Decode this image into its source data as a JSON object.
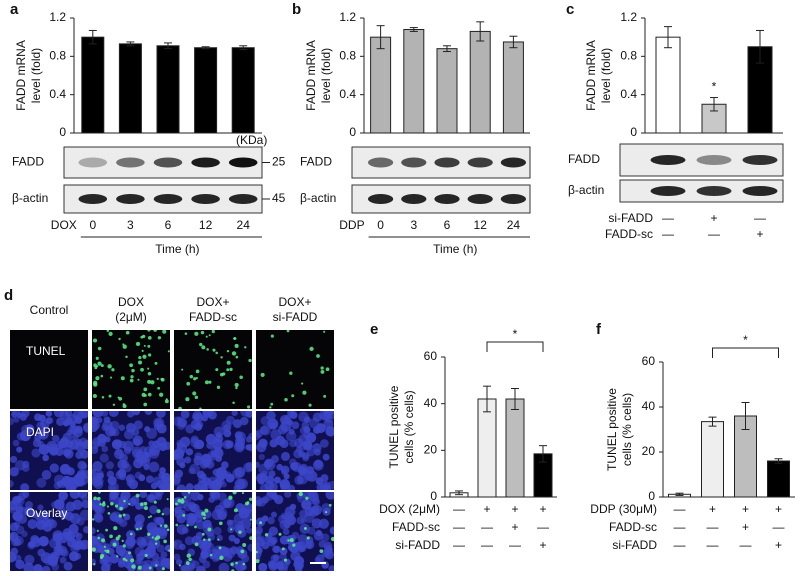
{
  "chart_data": [
    {
      "type": "bar",
      "panel": "a",
      "y_label": [
        "FADD mRNA",
        "level (fold)"
      ],
      "categories": [
        "0",
        "3",
        "6",
        "12",
        "24"
      ],
      "treatment": "DOX",
      "x_label": "Time (h)",
      "values": [
        1.0,
        0.93,
        0.91,
        0.89,
        0.89
      ],
      "errors": [
        0.07,
        0.02,
        0.03,
        0.01,
        0.02
      ],
      "color": "#000000",
      "ylim": [
        0,
        1.2
      ],
      "yticks": [
        0,
        0.4,
        0.8,
        1.2
      ],
      "blot_rows": [
        "FADD",
        "β-actin"
      ],
      "size_unit": "(KDa)",
      "size_markers": [
        25,
        45
      ]
    },
    {
      "type": "bar",
      "panel": "b",
      "y_label": [
        "FADD mRNA",
        "level (fold)"
      ],
      "categories": [
        "0",
        "3",
        "6",
        "12",
        "24"
      ],
      "treatment": "DDP",
      "x_label": "Time (h)",
      "values": [
        1.0,
        1.08,
        0.88,
        1.06,
        0.95
      ],
      "errors": [
        0.12,
        0.02,
        0.03,
        0.1,
        0.06
      ],
      "color": "#b3b3b3",
      "ylim": [
        0,
        1.2
      ],
      "yticks": [
        0,
        0.4,
        0.8,
        1.2
      ],
      "blot_rows": [
        "FADD",
        "β-actin"
      ]
    },
    {
      "type": "bar",
      "panel": "c",
      "y_label": [
        "FADD mRNA",
        "level (fold)"
      ],
      "values": [
        1.0,
        0.3,
        0.9
      ],
      "errors": [
        0.11,
        0.07,
        0.17
      ],
      "colors": [
        "#ffffff",
        "#c8c8c8",
        "#000000"
      ],
      "ylim": [
        0,
        1.2
      ],
      "yticks": [
        0,
        0.4,
        0.8,
        1.2
      ],
      "significance": "*",
      "blot_rows": [
        "FADD",
        "β-actin"
      ],
      "conditions": [
        {
          "name": "si-FADD",
          "marks": [
            "—",
            "+",
            "—"
          ]
        },
        {
          "name": "FADD-sc",
          "marks": [
            "—",
            "—",
            "+"
          ]
        }
      ]
    },
    {
      "type": "bar",
      "panel": "e",
      "y_label": [
        "TUNEL positive",
        "cells (% cells)"
      ],
      "values": [
        1.8,
        42,
        42,
        18.5
      ],
      "errors": [
        0.8,
        5.5,
        4.5,
        3.5
      ],
      "colors": [
        "#ffffff",
        "#eeeeee",
        "#bdbdbd",
        "#000000"
      ],
      "ylim": [
        0,
        60
      ],
      "yticks": [
        0,
        20,
        40,
        60
      ],
      "significance": "*",
      "conditions": [
        {
          "name": "DOX (2μM)",
          "marks": [
            "—",
            "+",
            "+",
            "+"
          ]
        },
        {
          "name": "FADD-sc",
          "marks": [
            "—",
            "—",
            "+",
            "—"
          ]
        },
        {
          "name": "si-FADD",
          "marks": [
            "—",
            "—",
            "—",
            "+"
          ]
        }
      ]
    },
    {
      "type": "bar",
      "panel": "f",
      "y_label": [
        "TUNEL positive",
        "cells (% cells)"
      ],
      "values": [
        1.2,
        33.5,
        36,
        16
      ],
      "errors": [
        0.5,
        2,
        6,
        1
      ],
      "colors": [
        "#ffffff",
        "#eeeeee",
        "#bdbdbd",
        "#000000"
      ],
      "ylim": [
        0,
        60
      ],
      "yticks": [
        0,
        20,
        40,
        60
      ],
      "significance": "*",
      "conditions": [
        {
          "name": "DDP (30μM)",
          "marks": [
            "—",
            "+",
            "+",
            "+"
          ]
        },
        {
          "name": "FADD-sc",
          "marks": [
            "—",
            "—",
            "+",
            "—"
          ]
        },
        {
          "name": "si-FADD",
          "marks": [
            "—",
            "—",
            "—",
            "+"
          ]
        }
      ]
    }
  ],
  "image_panel": {
    "panel": "d",
    "columns": [
      [
        "Control"
      ],
      [
        "DOX",
        "(2μM)"
      ],
      [
        "DOX+",
        "FADD-sc"
      ],
      [
        "DOX+",
        "si-FADD"
      ]
    ],
    "rows": [
      "TUNEL",
      "DAPI",
      "Overlay"
    ]
  }
}
